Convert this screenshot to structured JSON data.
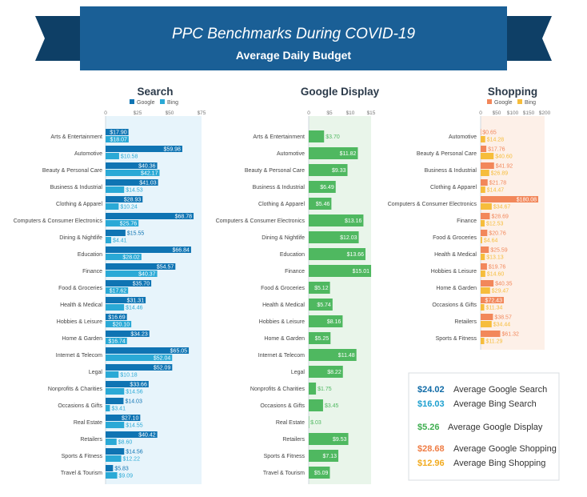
{
  "banner": {
    "title": "PPC Benchmarks During COVID-19",
    "subtitle": "Average Daily Budget"
  },
  "colors": {
    "banner": "#1a5f96",
    "banner_dark": "#0e3f66",
    "google_search": "#0f74b3",
    "bing_search": "#2aa9d6",
    "display": "#4fb860",
    "display_label_out": "#4fb860",
    "google_shopping": "#f2875a",
    "bing_shopping": "#f6bd3b",
    "search_bg": "#e7f4fb",
    "display_bg": "#e9f5ea",
    "shopping_bg": "#fdf0e8",
    "summary_border": "#d8dde2"
  },
  "chart_data": [
    {
      "type": "bar",
      "orientation": "horizontal",
      "title": "Search",
      "legend": [
        "Google",
        "Bing"
      ],
      "xlim": [
        0,
        75
      ],
      "ticks": [
        "0",
        "$25",
        "$50",
        "$75"
      ],
      "categories": [
        "Arts & Entertainment",
        "Automotive",
        "Beauty & Personal Care",
        "Business & Industrial",
        "Clothing & Apparel",
        "Computers & Consumer Electronics",
        "Dining & Nightlife",
        "Education",
        "Finance",
        "Food & Groceries",
        "Health & Medical",
        "Hobbies & Leisure",
        "Home & Garden",
        "Internet & Telecom",
        "Legal",
        "Nonprofits & Charities",
        "Occasions & Gifts",
        "Real Estate",
        "Retailers",
        "Sports & Fitness",
        "Travel & Tourism"
      ],
      "series": [
        {
          "name": "Google",
          "values": [
            17.9,
            59.98,
            40.36,
            41.03,
            28.93,
            68.78,
            15.55,
            66.84,
            54.57,
            35.7,
            31.31,
            16.69,
            34.23,
            65.05,
            52.09,
            33.66,
            14.03,
            27.1,
            40.42,
            14.56,
            5.83
          ],
          "labels": [
            "$17.90",
            "$59.98",
            "$40.36",
            "$41.03",
            "$28.93",
            "$68.78",
            "$15.55",
            "$66.84",
            "$54.57",
            "$35.70",
            "$31.31",
            "$16.69",
            "$34.23",
            "$65.05",
            "$52.09",
            "$33.66",
            "$14.03",
            "$27.10",
            "$40.42",
            "$14.56",
            "$5.83"
          ]
        },
        {
          "name": "Bing",
          "values": [
            18.07,
            10.58,
            42.17,
            14.53,
            10.24,
            25.76,
            4.41,
            28.02,
            40.37,
            17.62,
            14.46,
            20.1,
            16.74,
            52.04,
            10.18,
            14.56,
            3.41,
            14.55,
            8.6,
            12.22,
            9.09
          ],
          "labels": [
            "$18.07",
            "$10.58",
            "$42.17",
            "$14.53",
            "$10.24",
            "$25.76",
            "$4.41",
            "$28.02",
            "$40.37",
            "$17.62",
            "$14.46",
            "$20.10",
            "$16.74",
            "$52.04",
            "$10.18",
            "$14.56",
            "$3.41",
            "$14.55",
            "$8.60",
            "$12.22",
            "$9.09"
          ]
        }
      ]
    },
    {
      "type": "bar",
      "orientation": "horizontal",
      "title": "Google Display",
      "xlim": [
        0,
        15
      ],
      "ticks": [
        "0",
        "$5",
        "$10",
        "$15"
      ],
      "categories": [
        "Arts & Entertainment",
        "Automotive",
        "Beauty & Personal Care",
        "Business & Industrial",
        "Clothing & Apparel",
        "Computers & Consumer Electronics",
        "Dining & Nightlife",
        "Education",
        "Finance",
        "Food & Groceries",
        "Health & Medical",
        "Hobbies & Leisure",
        "Home & Garden",
        "Internet & Telecom",
        "Legal",
        "Nonprofits & Charities",
        "Occasions & Gifts",
        "Real Estate",
        "Retailers",
        "Sports & Fitness",
        "Travel & Tourism"
      ],
      "series": [
        {
          "name": "Google Display",
          "values": [
            3.7,
            11.82,
            9.33,
            6.49,
            5.46,
            13.16,
            12.03,
            13.66,
            15.01,
            5.12,
            5.74,
            8.16,
            5.25,
            11.48,
            8.22,
            1.75,
            3.45,
            0.03,
            9.53,
            7.13,
            5.09
          ],
          "labels": [
            "$3.70",
            "$11.82",
            "$9.33",
            "$6.49",
            "$5.46",
            "$13.16",
            "$12.03",
            "$13.66",
            "$15.01",
            "$5.12",
            "$5.74",
            "$8.16",
            "$5.25",
            "$11.48",
            "$8.22",
            "$1.75",
            "$3.45",
            "$.03",
            "$9.53",
            "$7.13",
            "$5.09"
          ]
        }
      ]
    },
    {
      "type": "bar",
      "orientation": "horizontal",
      "title": "Shopping",
      "legend": [
        "Google",
        "Bing"
      ],
      "xlim": [
        0,
        200
      ],
      "ticks": [
        "0",
        "$50",
        "$100",
        "$150",
        "$200"
      ],
      "categories": [
        "Automotive",
        "Beauty & Personal Care",
        "Business & Industrial",
        "Clothing & Apparel",
        "Computers & Consumer Electronics",
        "Finance",
        "Food & Groceries",
        "Health & Medical",
        "Hobbies & Leisure",
        "Home & Garden",
        "Occasions & Gifts",
        "Retailers",
        "Sports & Fitness"
      ],
      "series": [
        {
          "name": "Google",
          "values": [
            0.65,
            17.76,
            41.92,
            21.78,
            180.08,
            28.69,
            20.76,
            25.59,
            19.76,
            40.35,
            72.43,
            38.57,
            61.32
          ],
          "labels": [
            "$0.65",
            "$17.76",
            "$41.92",
            "$21.78",
            "$180.08",
            "$28.69",
            "$20.76",
            "$25.59",
            "$19.76",
            "$40.35",
            "$72.43",
            "$38.57",
            "$61.32"
          ]
        },
        {
          "name": "Bing",
          "values": [
            14.28,
            40.6,
            26.89,
            14.47,
            34.67,
            12.53,
            4.64,
            13.13,
            14.6,
            29.47,
            11.34,
            34.44,
            11.29
          ],
          "labels": [
            "$14.28",
            "$40.60",
            "$26.89",
            "$14.47",
            "$34.67",
            "$12.53",
            "$4.64",
            "$13.13",
            "$14.60",
            "$29.47",
            "$11.34",
            "$34.44",
            "$11.29"
          ]
        }
      ]
    }
  ],
  "summary": [
    {
      "value": "$24.02",
      "label": "Average Google Search",
      "color": "#0f6aa6"
    },
    {
      "value": "$16.03",
      "label": "Average Bing Search",
      "color": "#1ea0cf"
    },
    {
      "value": "$5.26",
      "label": "Average Google Display",
      "color": "#3fae50"
    },
    {
      "value": "$28.68",
      "label": "Average Google Shopping",
      "color": "#ef7d45"
    },
    {
      "value": "$12.96",
      "label": "Average Bing Shopping",
      "color": "#f2ab1e"
    }
  ]
}
